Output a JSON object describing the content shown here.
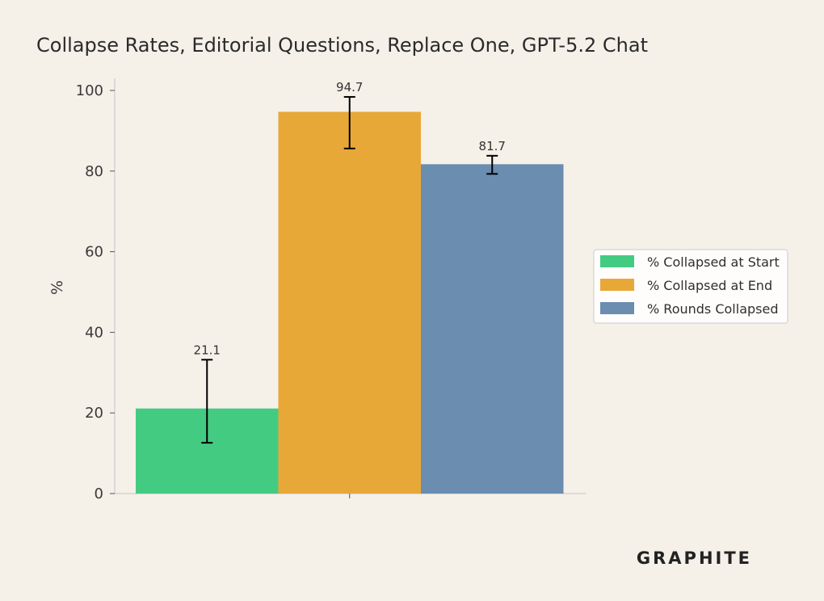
{
  "chart_data": {
    "type": "bar",
    "title": "Collapse Rates, Editorial Questions, Replace One, GPT-5.2 Chat",
    "xlabel": "",
    "ylabel": "%",
    "ylim": [
      0,
      103
    ],
    "yticks": [
      0,
      20,
      40,
      60,
      80,
      100
    ],
    "grid": false,
    "legend_position": "right",
    "categories": [
      ""
    ],
    "series": [
      {
        "name": "% Collapsed at Start",
        "values": [
          21.1
        ],
        "error_low": [
          12.6
        ],
        "error_high": [
          33.2
        ],
        "label": "21.1",
        "color": "#43cb82"
      },
      {
        "name": "% Collapsed at End",
        "values": [
          94.7
        ],
        "error_low": [
          85.6
        ],
        "error_high": [
          98.4
        ],
        "label": "94.7",
        "color": "#e8a838"
      },
      {
        "name": "% Rounds Collapsed",
        "values": [
          81.7
        ],
        "error_low": [
          79.3
        ],
        "error_high": [
          83.8
        ],
        "label": "81.7",
        "color": "#6a8db0"
      }
    ]
  },
  "brand": {
    "logo_text": "GRAPHITE"
  }
}
